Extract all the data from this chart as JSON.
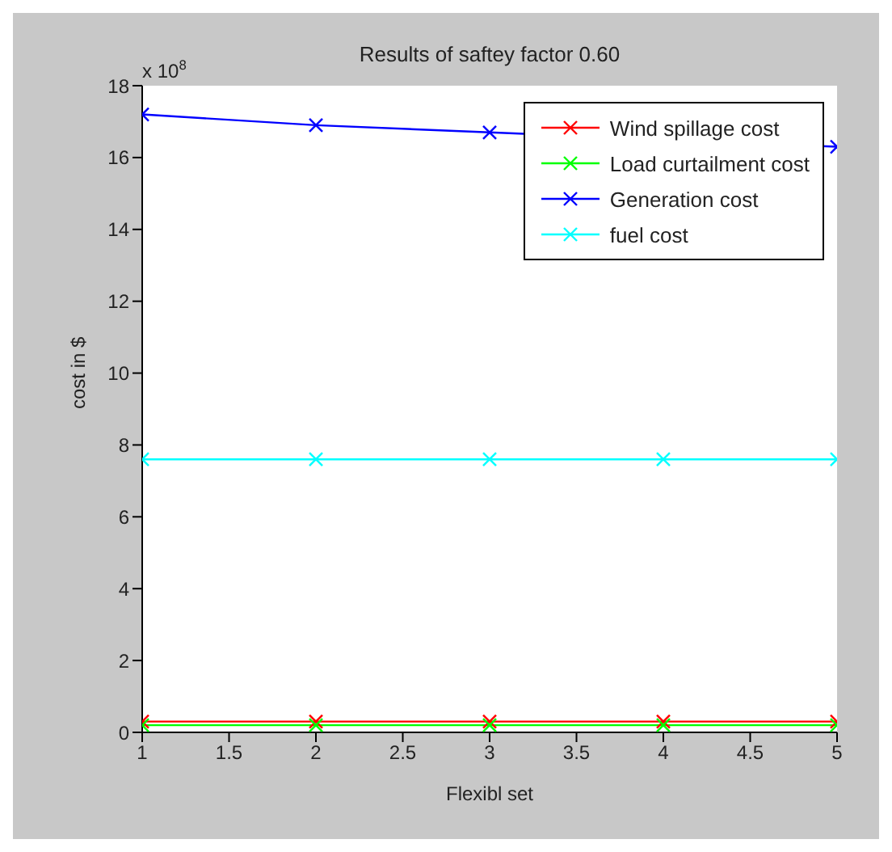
{
  "chart_data": {
    "type": "line",
    "title": "Results of saftey factor 0.60",
    "xlabel": "Flexibl set",
    "ylabel": "cost in $",
    "annotations": [
      "x 10$^{8}$"
    ],
    "x": [
      1,
      2,
      3,
      4,
      5
    ],
    "series": [
      {
        "name": "Wind spillage cost",
        "color": "#ff0000",
        "values": [
          0.3,
          0.3,
          0.3,
          0.3,
          0.3
        ]
      },
      {
        "name": "Load curtailment cost",
        "color": "#00ff00",
        "values": [
          0.2,
          0.2,
          0.2,
          0.2,
          0.2
        ]
      },
      {
        "name": "Generation cost",
        "color": "#0000ff",
        "values": [
          17.2,
          16.9,
          16.7,
          null,
          16.3
        ]
      },
      {
        "name": "fuel cost",
        "color": "#00ffff",
        "values": [
          7.6,
          7.6,
          7.6,
          7.6,
          7.6
        ]
      }
    ],
    "xlim": [
      1,
      5
    ],
    "xticks": [
      1,
      1.5,
      2,
      2.5,
      3,
      3.5,
      4,
      4.5,
      5
    ],
    "ylim": [
      0,
      18
    ],
    "yticks": [
      0,
      2,
      4,
      6,
      8,
      10,
      12,
      14,
      16,
      18
    ],
    "grid": false,
    "legend": "top right",
    "marker": "cross",
    "line_style": "solid"
  }
}
